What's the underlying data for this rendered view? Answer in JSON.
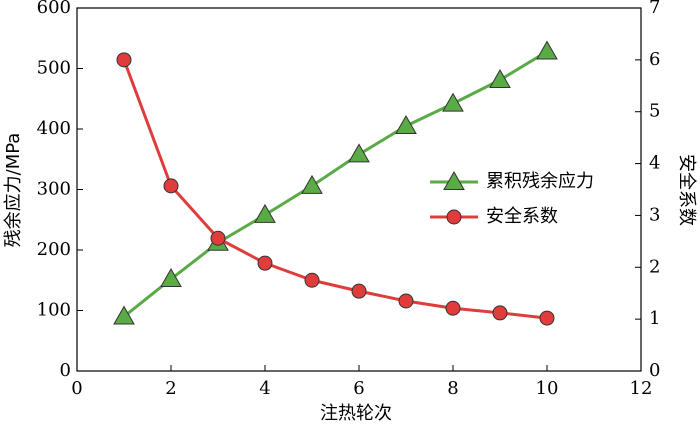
{
  "chart_data": {
    "type": "line",
    "x_label": "注热轮次",
    "y_label": "残余应力/MPa",
    "y2_label": "安全系数",
    "xlim": [
      0,
      12
    ],
    "xticks": [
      0,
      2,
      4,
      6,
      8,
      10,
      12
    ],
    "ylim": [
      0,
      600
    ],
    "yticks": [
      0,
      100,
      200,
      300,
      400,
      500,
      600
    ],
    "y2lim": [
      0,
      7
    ],
    "y2ticks": [
      0,
      1,
      2,
      3,
      4,
      5,
      6,
      7
    ],
    "legend": "center right",
    "grid": false,
    "series": [
      {
        "name": "累积残余应力",
        "color": "#5aaa46",
        "marker": "triangle",
        "x": [
          1,
          2,
          3,
          4,
          5,
          6,
          7,
          8,
          9,
          10
        ],
        "values": [
          90,
          152,
          212,
          258,
          306,
          358,
          405,
          442,
          481,
          528
        ]
      },
      {
        "name": "安全系数",
        "color": "#e03c3c",
        "marker": "circle",
        "axis": "y2",
        "x": [
          1,
          2,
          3,
          4,
          5,
          6,
          7,
          8,
          9,
          10
        ],
        "values": [
          6.0,
          3.57,
          2.56,
          2.08,
          1.75,
          1.54,
          1.35,
          1.21,
          1.12,
          1.02
        ]
      }
    ]
  }
}
